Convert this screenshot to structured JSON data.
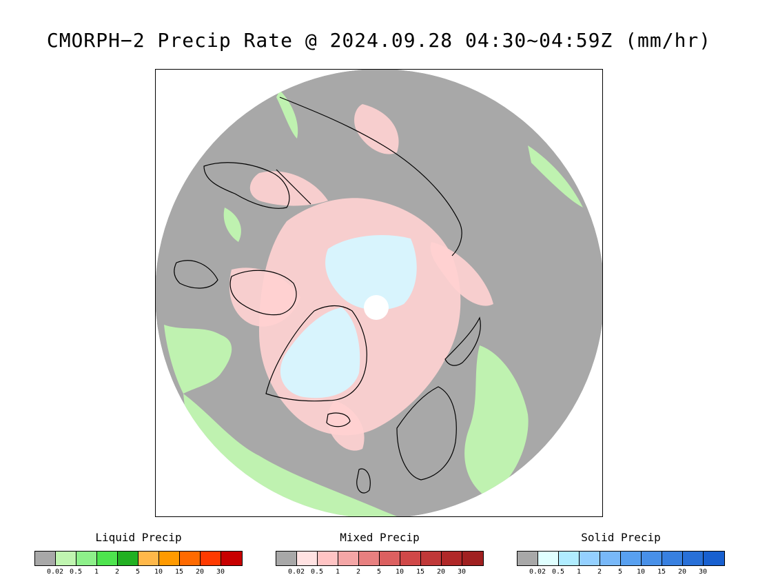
{
  "title": "CMORPH−2 Precip Rate @ 2024.09.28 04:30~04:59Z (mm/hr)",
  "colors": {
    "no_precip": "#a8a8a8",
    "ocean_bg": "#a8a8a8",
    "liquid_light": "#c0f5b0",
    "mixed_light": "#ffd2d2",
    "solid_light": "#d6f6ff",
    "coastline": "#000000"
  },
  "legends": [
    {
      "title": "Liquid Precip",
      "colors": [
        "#a8a8a8",
        "#c0f5b0",
        "#8ef08a",
        "#4ee44e",
        "#22b022",
        "#ffb84a",
        "#ff9a00",
        "#ff6a00",
        "#ff3a00",
        "#c80000"
      ],
      "ticks": [
        "0.02",
        "0.5",
        "1",
        "2",
        "5",
        "10",
        "15",
        "20",
        "30"
      ]
    },
    {
      "title": "Mixed Precip",
      "colors": [
        "#a8a8a8",
        "#ffe2e2",
        "#ffc4c4",
        "#f4a6a6",
        "#e88080",
        "#dc6060",
        "#d04848",
        "#c03838",
        "#b02828",
        "#a02020"
      ],
      "ticks": [
        "0.02",
        "0.5",
        "1",
        "2",
        "5",
        "10",
        "15",
        "20",
        "30"
      ]
    },
    {
      "title": "Solid Precip",
      "colors": [
        "#a8a8a8",
        "#e0ffff",
        "#b0ecff",
        "#94d0ff",
        "#78b8f8",
        "#58a0f0",
        "#4890e8",
        "#3880e0",
        "#2870d8",
        "#1860d0"
      ],
      "ticks": [
        "0.02",
        "0.5",
        "1",
        "2",
        "5",
        "10",
        "15",
        "20",
        "30"
      ]
    }
  ]
}
